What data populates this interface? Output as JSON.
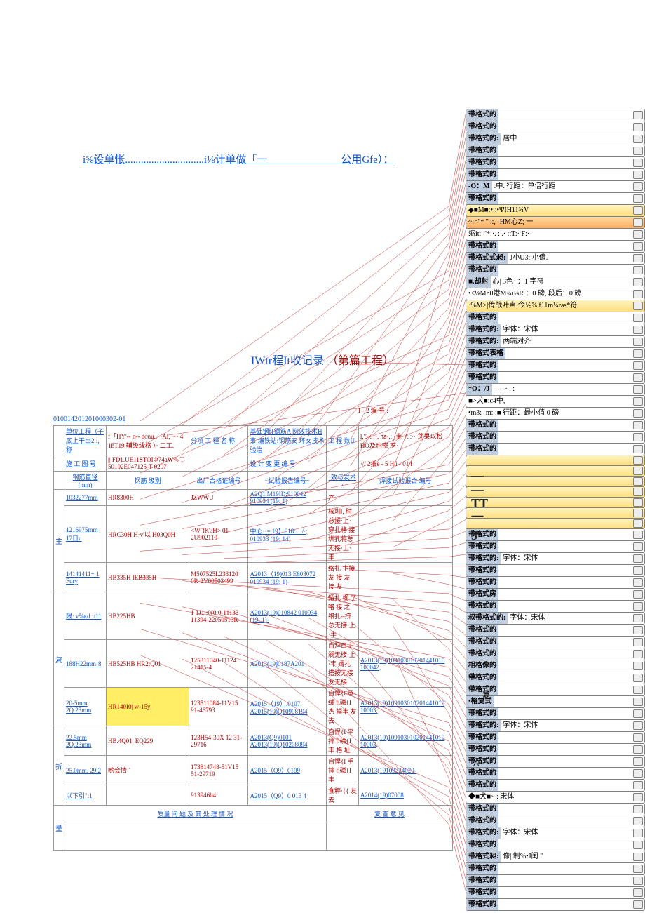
{
  "header": {
    "line": "i⅝设单怅..............................i⅛计单做「一　　　　　　　公用Gfe）："
  },
  "title": {
    "blue": "IWtr程It收记录",
    "red": "（第篇工程）"
  },
  "serial": "010014201201000302-01",
  "upper_rows": [
    {
      "a": "单位工程（子 底上干出2 :, 称",
      "b": "f「HY'-- n-- dοuu., ~Al, ~~ 4 1ßT19 辅级线格 ）· 二工.",
      "c": "分项 工 程 名 称",
      "d": "基础钢f{钢筋A 网效技术H事 编铁站:钢筋安 环女技术验治",
      "e": "工 程 数U",
      "f": "l.'5·: :·, ㏊·,: ·圭·'/:':··   荡果以松HO及也密 穸·"
    },
    {
      "a": "施 工 图 号",
      "b": "|| FD1.UE11STOIФ74aW%     T-50102E047125-T 0207",
      "c": "",
      "d": "设 计 变 更 编 号",
      "e": "",
      "f": "·// 2抵e - 5 Hü - 014"
    }
  ],
  "cols": [
    "钢筋直径 (mm)",
    "钢筋 级别",
    "出厂合格证编号",
    "~试验报告编号~",
    "·效与发术·",
    "焊接试验报合 编号"
  ],
  "rows": [
    {
      "c0": "1032277mm",
      "c1": "HR8300H",
      "c2": "JZWWU",
      "c3": "A2Q1.M19ID:910042    910934 (19: 1)",
      "c4": "产",
      "c5": ""
    },
    {
      "c0": "1216975mm 17日u",
      "c1": "HRC30H H·v'以 H03Q0H",
      "c2": "<W¨IK\\:H>   01-2U902110-",
      "c3": "中心··= 19】018:···/·;   010933 (19: 14)",
      "c4": "核圳‖, 肘总援·上·穿扎格   接圳孔将总无接·上·丰",
      "c5": ""
    },
    {
      "c0": "14141411+ 1 Fury",
      "c1": "HB335H IEB335H",
      "c2": "M507525L233120   0R-2V00503499",
      "c3": "A2013（19)013 E803072   010934 (19: 1)-",
      "c4": "络扎   卞接 友 接 友 接 友",
      "c5": ""
    },
    {
      "c0": "限: v%кd :/11",
      "c1": "HB225HB",
      "c2": "1 1J1:;0(0;0-11133   11394-22050513R",
      "c3": "A2013(19)010842   010934 (19: 1)-",
      "c4": "銆扎 视 了 咯 接 之  络扎--挤总无接·上·丰",
      "c5": ""
    },
    {
      "c0": "188H22mm·8",
      "c1": "HB525HB HR2:Q01",
      "c2": "125311040-11124    21415-4",
      "c3": "A2013(19)0187A201",
      "c4": "自拜目 并斓无椄·上·丰   婿扎 搭按无接 友无椄",
      "c5": "A2013(19)109103010201441010   100042,"
    },
    {
      "c0": "20-5mm 2Q.23mm",
      "c1": "HR140I0| w-15y",
      "hi": true,
      "c2": "123511084-11V15    91-46793",
      "c3": "A2015（19）.0107   A2015(19)Q10908194",
      "c4": "自悍{I 承绒 fi磷{I 杰    掉丰 友去",
      "c5": "A2013(19)109103010201441019   10003,"
    },
    {
      "c0": "22.5mm 2Q.23mm",
      "c1": "HB.4Q01| EQ229",
      "c2": "123H54-30X 12    31-29716",
      "c3": "A2013(Q9)0101   A2013(19)Q10208094",
      "c4": "自悍{I 平排 fi磷{I 丰    格 址",
      "c5": "A2013(19)109103010201441019   10003,"
    },
    {
      "c0": "25.0mm.   29.2",
      "c1": "哟会情 `",
      "c2": "173814748-51V15    51-29719",
      "c3": "A2015（Q9）0109",
      "c4": "自悍{I 手排 fi磷{I 丰",
      "c5": "A2013(19109224020-"
    },
    {
      "c0": "以下引\":1",
      "c1": "",
      "c2": "913946b4",
      "c3": "A2015（Q9）0 013 4",
      "c4": "食粹·{{ 友去",
      "c5": "A2014(19)07008"
    }
  ],
  "footer": {
    "left": "质量 问 题 及 其 处 理 情 况",
    "right": "复 查 意 见"
  },
  "vlabels": [
    "主",
    "复",
    "折",
    "量"
  ],
  "top_no": "1 - 2      编 号 :",
  "comments": [
    {
      "lab": "带格式的",
      "txt": ""
    },
    {
      "lab": "带格式的",
      "txt": ""
    },
    {
      "lab": "带格式的:",
      "txt": "居中"
    },
    {
      "lab": "带格式的",
      "txt": ""
    },
    {
      "lab": "带格式的",
      "txt": ""
    },
    {
      "lab": "带格式的",
      "txt": ""
    },
    {
      "lab": "-O：M",
      "txt": "    :中. 行距：单倍行距",
      "style": ""
    },
    {
      "lab": "带格式的",
      "txt": ""
    },
    {
      "lab": "",
      "txt": "◆■M■:•:;•ΨIH11¾V",
      "style": "yel"
    },
    {
      "lab": "",
      "txt": "~:<''*  '\"::,         -HM心Z; 一",
      "style": "org"
    },
    {
      "lab": "",
      "txt": " 缩it:     ·'*:·.  :  .· ::T:· F:·",
      "style": ""
    },
    {
      "lab": "带格式的",
      "txt": ""
    },
    {
      "lab": "带格式式昶:",
      "txt": "J小U3: 小偝."
    },
    {
      "lab": "带格式的",
      "txt": ""
    },
    {
      "lab": "■.却射",
      "txt": " 心| 3色·              ：1 字符",
      "style": ""
    },
    {
      "lab": "",
      "txt": "•<⅛Mh0港M¾i⅛R      ：0 磅, 段后：0 磅",
      "style": ""
    },
    {
      "lab": "",
      "txt": "·%M>|传战叶声,今⅕⅝      f11m¼ras*符",
      "style": "yel"
    },
    {
      "lab": "带格式的",
      "txt": ""
    },
    {
      "lab": "带格式的:",
      "txt": "字体：宋体"
    },
    {
      "lab": "带格式的:",
      "txt": "两端对齐"
    },
    {
      "lab": "带格式表格",
      "txt": ""
    },
    {
      "lab": "带格式的",
      "txt": ""
    },
    {
      "lab": "带格式的",
      "txt": ""
    },
    {
      "lab": "*O：/J",
      "txt": " ---- ·   ,    :"
    },
    {
      "lab": "",
      "txt": "■>犬■:c4中,"
    },
    {
      "lab": "",
      "txt": "•m3:- m: :■  行距：最小值 0 磅"
    },
    {
      "lab": "带格式的",
      "txt": ""
    },
    {
      "lab": "带格式的",
      "txt": ""
    },
    {
      "lab": "带格式的",
      "txt": ""
    },
    {
      "lab": "",
      "txt": "",
      "style": "yel"
    },
    {
      "lab": "",
      "txt": "",
      "style": "yel"
    },
    {
      "lab": "",
      "txt": "",
      "style": "yel"
    },
    {
      "lab": "",
      "txt": "",
      "style": "yel"
    },
    {
      "lab": "",
      "txt": "",
      "style": "yel"
    },
    {
      "lab": "",
      "txt": "",
      "style": "yel"
    },
    {
      "lab": "",
      "txt": "",
      "style": "yel"
    },
    {
      "lab": "带格式的",
      "txt": ""
    },
    {
      "lab": "带格式的",
      "txt": ""
    },
    {
      "lab": "带格式的:",
      "txt": "字体：宋体"
    },
    {
      "lab": "带格式的",
      "txt": ""
    },
    {
      "lab": "带格式的",
      "txt": ""
    },
    {
      "lab": "带格式房",
      "txt": ""
    },
    {
      "lab": "带格式的",
      "txt": ""
    },
    {
      "lab": "叔带格式的:",
      "txt": "字体：宋体"
    },
    {
      "lab": "带格式的",
      "txt": ""
    },
    {
      "lab": "带格式的",
      "txt": ""
    },
    {
      "lab": "带格式的",
      "txt": ""
    },
    {
      "lab": "相格像的",
      "txt": ""
    },
    {
      "lab": "帶格式的",
      "txt": ""
    },
    {
      "lab": "帶格式的",
      "txt": ""
    },
    {
      "lab": "•格复式",
      "txt": ""
    },
    {
      "lab": "带格式的",
      "txt": ""
    },
    {
      "lab": "带格式的:",
      "txt": "字体：宋体"
    },
    {
      "lab": "带格式的",
      "txt": ""
    },
    {
      "lab": "带格式的",
      "txt": ""
    },
    {
      "lab": "带格式的",
      "txt": ""
    },
    {
      "lab": "带格式的",
      "txt": ""
    },
    {
      "lab": "带格式的",
      "txt": ""
    },
    {
      "lab": "",
      "txt": "◆■犬■~  : 宋体"
    },
    {
      "lab": "带格式的",
      "txt": ""
    },
    {
      "lab": "带格式的",
      "txt": ""
    },
    {
      "lab": "带格式的:",
      "txt": "字体：宋体"
    },
    {
      "lab": "带格式的",
      "txt": ""
    },
    {
      "lab": "带格式昶:",
      "txt": " 像| 制%•J闰 \""
    },
    {
      "lab": "带格式的",
      "txt": ""
    },
    {
      "lab": "带格式的",
      "txt": ""
    },
    {
      "lab": "带格式的",
      "txt": ""
    },
    {
      "lab": "带格式的",
      "txt": ""
    }
  ],
  "stray_glyphs": [
    "—",
    "—",
    "TT",
    "一",
    "3"
  ],
  "colors": {
    "link": "#1155cc",
    "red": "#b00000",
    "hi": "#ffee66",
    "cmt_head": "#bfcde0",
    "leader": "#cc3333"
  }
}
